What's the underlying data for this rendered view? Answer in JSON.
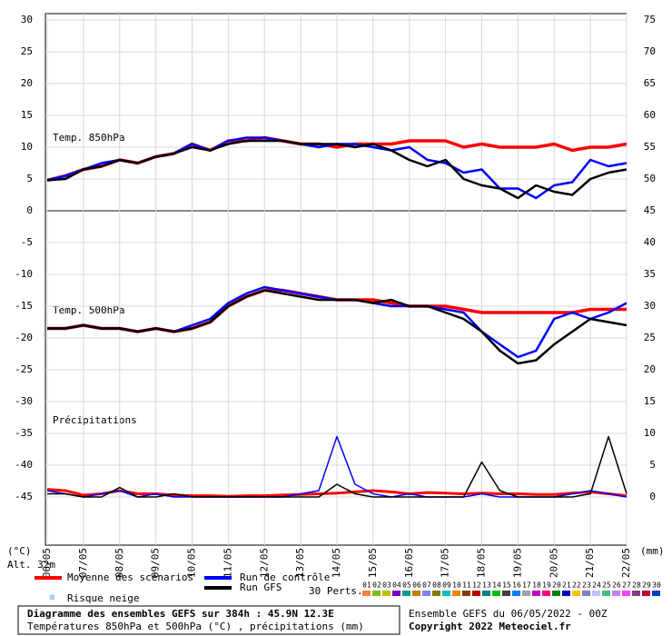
{
  "chart_data": {
    "type": "line",
    "annotations": {
      "unit_left": "(°C)",
      "unit_right": "(mm)",
      "altitude": "Alt. 32m",
      "panel_850": "Temp. 850hPa",
      "panel_500": "Temp. 500hPa",
      "panel_precip": "Précipitations"
    },
    "x": [
      0,
      0.5,
      1,
      1.5,
      2,
      2.5,
      3,
      3.5,
      4,
      4.5,
      5,
      5.5,
      6,
      6.5,
      7,
      7.5,
      8,
      8.5,
      9,
      9.5,
      10,
      10.5,
      11,
      11.5,
      12,
      12.5,
      13,
      13.5,
      14,
      14.5,
      15,
      15.5,
      16
    ],
    "xlim": [
      0,
      16
    ],
    "xticks": [
      {
        "value": 0,
        "label": "06/05"
      },
      {
        "value": 1,
        "label": "07/05"
      },
      {
        "value": 2,
        "label": "08/05"
      },
      {
        "value": 3,
        "label": "09/05"
      },
      {
        "value": 4,
        "label": "10/05"
      },
      {
        "value": 5,
        "label": "11/05"
      },
      {
        "value": 6,
        "label": "12/05"
      },
      {
        "value": 7,
        "label": "13/05"
      },
      {
        "value": 8,
        "label": "14/05"
      },
      {
        "value": 9,
        "label": "15/05"
      },
      {
        "value": 10,
        "label": "16/05"
      },
      {
        "value": 11,
        "label": "17/05"
      },
      {
        "value": 12,
        "label": "18/05"
      },
      {
        "value": 13,
        "label": "19/05"
      },
      {
        "value": 14,
        "label": "20/05"
      },
      {
        "value": 15,
        "label": "21/05"
      },
      {
        "value": 16,
        "label": "22/05"
      }
    ],
    "ylim": [
      -45,
      30
    ],
    "yticks": [
      -45,
      -40,
      -35,
      -30,
      -25,
      -20,
      -15,
      -10,
      -5,
      0,
      5,
      10,
      15,
      20,
      25,
      30
    ],
    "y2lim": [
      0,
      75
    ],
    "y2ticks": [
      0,
      5,
      10,
      15,
      20,
      25,
      30,
      35,
      40,
      45,
      50,
      55,
      60,
      65,
      70,
      75
    ],
    "grid": true,
    "series": [
      {
        "name": "Moyenne des scénarios",
        "color": "#ff0000",
        "values": [
          4.8,
          5.5,
          6.5,
          7,
          8,
          7.5,
          8.5,
          9,
          10.5,
          9.5,
          11,
          11,
          11.5,
          11,
          10.5,
          10.5,
          10,
          10.5,
          10.5,
          10.5,
          11,
          11,
          11,
          10,
          10.5,
          10,
          10,
          10,
          10.5,
          9.5,
          10,
          10,
          10.5
        ]
      },
      {
        "name": "Run de contrôle",
        "color": "#0000ff",
        "values": [
          4.8,
          5.5,
          6.5,
          7.5,
          8,
          7.5,
          8.5,
          9,
          10.5,
          9.5,
          11,
          11.5,
          11.5,
          11,
          10.5,
          10,
          10.5,
          10.5,
          10,
          9.5,
          10,
          8,
          7.5,
          6,
          6.5,
          3.5,
          3.5,
          2,
          4,
          4.5,
          8,
          7,
          7.5
        ]
      },
      {
        "name": "Run GFS",
        "color": "#000000",
        "values": [
          4.8,
          5,
          6.5,
          7,
          8,
          7.5,
          8.5,
          9,
          10,
          9.5,
          10.5,
          11,
          11,
          11,
          10.5,
          10.5,
          10.5,
          10,
          10.5,
          9.5,
          8,
          7,
          8,
          5,
          4,
          3.5,
          2,
          4,
          3,
          2.5,
          5,
          6,
          6.5
        ]
      }
    ],
    "series_500": [
      {
        "color": "#ff0000",
        "values": [
          -18.5,
          -18.5,
          -18,
          -18.5,
          -18.5,
          -19,
          -18.5,
          -19,
          -18.5,
          -17.5,
          -15,
          -13.5,
          -12.5,
          -12.5,
          -13,
          -13.5,
          -14,
          -14,
          -14,
          -14.5,
          -15,
          -15,
          -15,
          -15.5,
          -16,
          -16,
          -16,
          -16,
          -16,
          -16,
          -15.5,
          -15.5,
          -15.5
        ]
      },
      {
        "color": "#0000ff",
        "values": [
          -18.5,
          -18.5,
          -18,
          -18.5,
          -18.5,
          -19,
          -18.5,
          -19,
          -18,
          -17,
          -14.5,
          -13,
          -12,
          -12.5,
          -13,
          -13.5,
          -14,
          -14,
          -14.5,
          -15,
          -15,
          -15,
          -15.5,
          -16,
          -19,
          -21,
          -23,
          -22,
          -17,
          -16,
          -17,
          -16,
          -14.5
        ]
      },
      {
        "color": "#000000",
        "values": [
          -18.5,
          -18.5,
          -18,
          -18.5,
          -18.5,
          -19,
          -18.5,
          -19,
          -18.5,
          -17.5,
          -15,
          -13.5,
          -12.5,
          -13,
          -13.5,
          -14,
          -14,
          -14,
          -14.5,
          -14,
          -15,
          -15,
          -16,
          -17,
          -19,
          -22,
          -24,
          -23.5,
          -21,
          -19,
          -17,
          -17.5,
          -18
        ]
      }
    ],
    "series_precip": [
      {
        "color": "#ff0000",
        "axis": "y2",
        "values": [
          1.2,
          1,
          0.3,
          0.5,
          1,
          0.5,
          0.5,
          0.3,
          0.2,
          0.2,
          0.1,
          0.2,
          0.2,
          0.3,
          0.4,
          0.5,
          0.6,
          0.8,
          1,
          0.8,
          0.5,
          0.7,
          0.6,
          0.5,
          0.6,
          0.5,
          0.5,
          0.4,
          0.4,
          0.6,
          0.8,
          0.5,
          0.2
        ]
      },
      {
        "color": "#0000ff",
        "axis": "y2",
        "values": [
          1,
          0.5,
          0,
          0.5,
          1,
          0,
          0.5,
          0,
          0,
          0,
          0,
          0,
          0,
          0,
          0.5,
          1,
          9.5,
          2,
          0.5,
          0,
          0.5,
          0,
          0,
          0,
          0.5,
          0,
          0,
          0,
          0,
          0.5,
          1,
          0.5,
          0
        ]
      },
      {
        "color": "#000000",
        "axis": "y2",
        "values": [
          0.5,
          0.5,
          0,
          0,
          1.5,
          0,
          0,
          0.5,
          0,
          0,
          0,
          0,
          0,
          0,
          0,
          0,
          2,
          0.5,
          0,
          0,
          0,
          0,
          0,
          0,
          5.5,
          1,
          0,
          0,
          0,
          0,
          0.5,
          9.5,
          0.5
        ]
      }
    ],
    "snow_label": "Risque neige",
    "perturbations": {
      "label": "30 Perts.",
      "items": [
        {
          "label": "01",
          "color": "#ff8040"
        },
        {
          "label": "02",
          "color": "#80c000"
        },
        {
          "label": "03",
          "color": "#c0c000"
        },
        {
          "label": "04",
          "color": "#8000c0"
        },
        {
          "label": "05",
          "color": "#00a080"
        },
        {
          "label": "06",
          "color": "#c08000"
        },
        {
          "label": "07",
          "color": "#8080ff"
        },
        {
          "label": "08",
          "color": "#808000"
        },
        {
          "label": "09",
          "color": "#00c0c0"
        },
        {
          "label": "10",
          "color": "#ff8000"
        },
        {
          "label": "11",
          "color": "#804000"
        },
        {
          "label": "12",
          "color": "#c00000"
        },
        {
          "label": "13",
          "color": "#008080"
        },
        {
          "label": "14",
          "color": "#00c000"
        },
        {
          "label": "15",
          "color": "#404040"
        },
        {
          "label": "16",
          "color": "#0080ff"
        },
        {
          "label": "17",
          "color": "#a0a0a0"
        },
        {
          "label": "18",
          "color": "#c000c0"
        },
        {
          "label": "19",
          "color": "#ff0080"
        },
        {
          "label": "20",
          "color": "#008000"
        },
        {
          "label": "21",
          "color": "#0000c0"
        },
        {
          "label": "22",
          "color": "#ffc000"
        },
        {
          "label": "23",
          "color": "#8080c0"
        },
        {
          "label": "24",
          "color": "#c0c0ff"
        },
        {
          "label": "25",
          "color": "#40c080"
        },
        {
          "label": "26",
          "color": "#c080ff"
        },
        {
          "label": "27",
          "color": "#ff40ff"
        },
        {
          "label": "28",
          "color": "#804080"
        },
        {
          "label": "29",
          "color": "#c00040"
        },
        {
          "label": "30",
          "color": "#0040c0"
        }
      ]
    },
    "footer": {
      "title": "Diagramme des ensembles GEFS sur 384h : 45.9N 12.3E",
      "subtitle": "Températures 850hPa et 500hPa (°C) , précipitations (mm)",
      "run": "Ensemble GEFS du 06/05/2022 - 00Z",
      "copyright": "Copyright 2022 Meteociel.fr"
    }
  }
}
